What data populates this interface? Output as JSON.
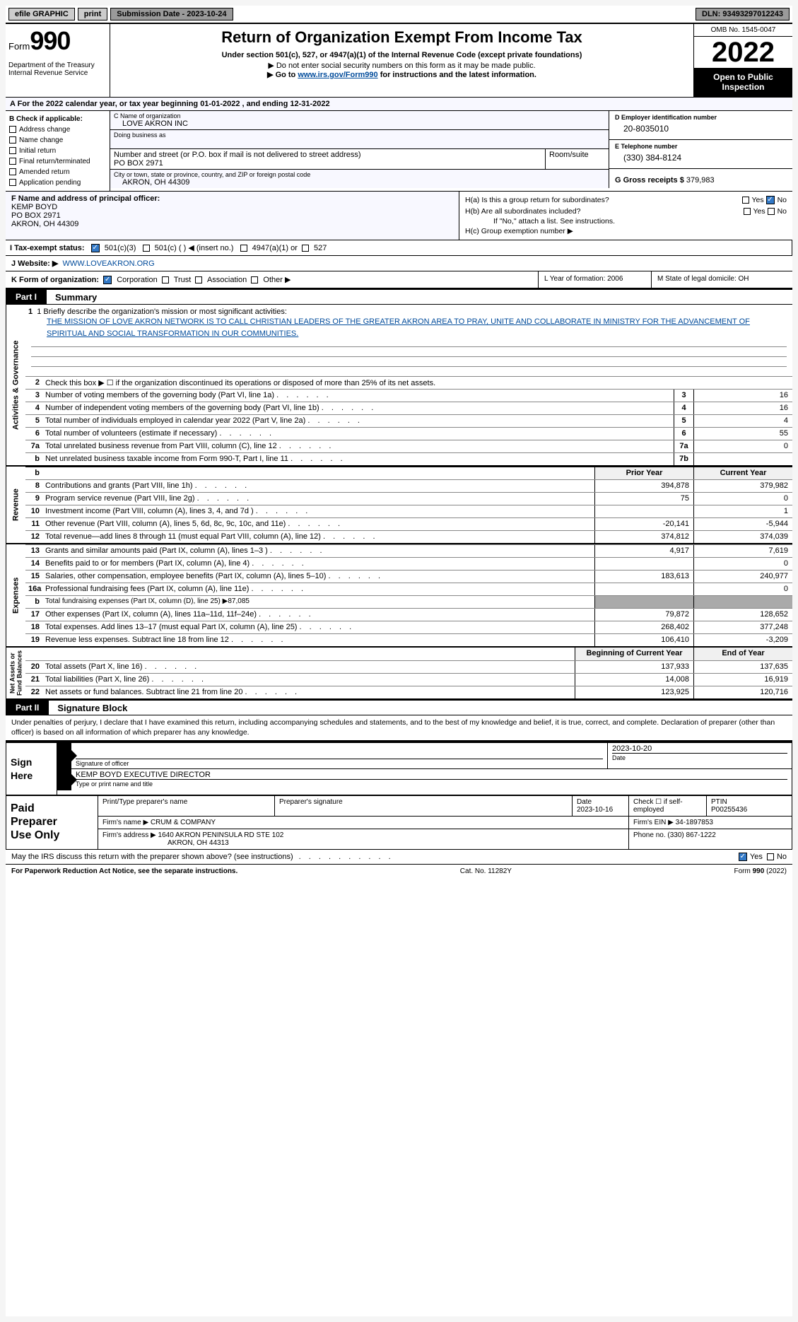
{
  "topbar": {
    "efile": "efile GRAPHIC",
    "print": "print",
    "submission_date": "Submission Date - 2023-10-24",
    "dln": "DLN: 93493297012243"
  },
  "header": {
    "form_prefix": "Form",
    "form_number": "990",
    "dept": "Department of the Treasury\nInternal Revenue Service",
    "title": "Return of Organization Exempt From Income Tax",
    "subtitle": "Under section 501(c), 527, or 4947(a)(1) of the Internal Revenue Code (except private foundations)",
    "note1": "▶ Do not enter social security numbers on this form as it may be made public.",
    "note2_prefix": "▶ Go to ",
    "note2_link": "www.irs.gov/Form990",
    "note2_suffix": " for instructions and the latest information.",
    "omb": "OMB No. 1545-0047",
    "year": "2022",
    "open_public": "Open to Public\nInspection"
  },
  "line_a": "A For the 2022 calendar year, or tax year beginning 01-01-2022    , and ending 12-31-2022",
  "box_b": {
    "label": "B Check if applicable:",
    "items": [
      "Address change",
      "Name change",
      "Initial return",
      "Final return/terminated",
      "Amended return",
      "Application pending"
    ]
  },
  "box_c": {
    "name_label": "C Name of organization",
    "name": "LOVE AKRON INC",
    "dba_label": "Doing business as",
    "dba": "",
    "street_label": "Number and street (or P.O. box if mail is not delivered to street address)",
    "room_label": "Room/suite",
    "street": "PO BOX 2971",
    "city_label": "City or town, state or province, country, and ZIP or foreign postal code",
    "city": "AKRON, OH   44309"
  },
  "box_d": {
    "label": "D Employer identification number",
    "value": "20-8035010"
  },
  "box_e": {
    "label": "E Telephone number",
    "value": "(330) 384-8124"
  },
  "box_g": {
    "label": "G Gross receipts $",
    "value": "379,983"
  },
  "box_f": {
    "label": "F  Name and address of principal officer:",
    "name": "KEMP BOYD",
    "street": "PO BOX 2971",
    "city": "AKRON, OH   44309"
  },
  "box_h": {
    "ha": "H(a)   Is this a group return for subordinates?",
    "hb": "H(b)   Are all subordinates included?",
    "hb_note": "If \"No,\" attach a list. See instructions.",
    "hc": "H(c)   Group exemption number ▶"
  },
  "line_i": {
    "label": "I    Tax-exempt status:",
    "opts": [
      "501(c)(3)",
      "501(c) (  ) ◀ (insert no.)",
      "4947(a)(1) or",
      "527"
    ]
  },
  "line_j": {
    "label": "J   Website: ▶",
    "value": "WWW.LOVEAKRON.ORG"
  },
  "line_k": {
    "label": "K Form of organization:",
    "opts": [
      "Corporation",
      "Trust",
      "Association",
      "Other ▶"
    ],
    "l": "L Year of formation: 2006",
    "m": "M State of legal domicile: OH"
  },
  "part1": {
    "label": "Part I",
    "title": "Summary"
  },
  "mission": {
    "label": "1   Briefly describe the organization's mission or most significant activities:",
    "text": "THE MISSION OF LOVE AKRON NETWORK IS TO CALL CHRISTIAN LEADERS OF THE GREATER AKRON AREA TO PRAY, UNITE AND COLLABORATE IN MINISTRY FOR THE ADVANCEMENT OF SPIRITUAL AND SOCIAL TRANSFORMATION IN OUR COMMUNITIES."
  },
  "activities": {
    "vlabel": "Activities & Governance",
    "rows": [
      {
        "num": "2",
        "desc": "Check this box ▶ ☐  if the organization discontinued its operations or disposed of more than 25% of its net assets."
      },
      {
        "num": "3",
        "desc": "Number of voting members of the governing body (Part VI, line 1a)",
        "box": "3",
        "val": "16"
      },
      {
        "num": "4",
        "desc": "Number of independent voting members of the governing body (Part VI, line 1b)",
        "box": "4",
        "val": "16"
      },
      {
        "num": "5",
        "desc": "Total number of individuals employed in calendar year 2022 (Part V, line 2a)",
        "box": "5",
        "val": "4"
      },
      {
        "num": "6",
        "desc": "Total number of volunteers (estimate if necessary)",
        "box": "6",
        "val": "55"
      },
      {
        "num": "7a",
        "desc": "Total unrelated business revenue from Part VIII, column (C), line 12",
        "box": "7a",
        "val": "0"
      },
      {
        "num": "b",
        "sub": true,
        "desc": "Net unrelated business taxable income from Form 990-T, Part I, line 11",
        "box": "7b",
        "val": ""
      }
    ]
  },
  "revenue": {
    "vlabel": "Revenue",
    "header": {
      "prior": "Prior Year",
      "current": "Current Year"
    },
    "rows": [
      {
        "num": "8",
        "desc": "Contributions and grants (Part VIII, line 1h)",
        "prior": "394,878",
        "current": "379,982"
      },
      {
        "num": "9",
        "desc": "Program service revenue (Part VIII, line 2g)",
        "prior": "75",
        "current": "0"
      },
      {
        "num": "10",
        "desc": "Investment income (Part VIII, column (A), lines 3, 4, and 7d )",
        "prior": "",
        "current": "1"
      },
      {
        "num": "11",
        "desc": "Other revenue (Part VIII, column (A), lines 5, 6d, 8c, 9c, 10c, and 11e)",
        "prior": "-20,141",
        "current": "-5,944"
      },
      {
        "num": "12",
        "desc": "Total revenue—add lines 8 through 11 (must equal Part VIII, column (A), line 12)",
        "prior": "374,812",
        "current": "374,039"
      }
    ]
  },
  "expenses": {
    "vlabel": "Expenses",
    "rows": [
      {
        "num": "13",
        "desc": "Grants and similar amounts paid (Part IX, column (A), lines 1–3 )",
        "prior": "4,917",
        "current": "7,619"
      },
      {
        "num": "14",
        "desc": "Benefits paid to or for members (Part IX, column (A), line 4)",
        "prior": "",
        "current": "0"
      },
      {
        "num": "15",
        "desc": "Salaries, other compensation, employee benefits (Part IX, column (A), lines 5–10)",
        "prior": "183,613",
        "current": "240,977"
      },
      {
        "num": "16a",
        "desc": "Professional fundraising fees (Part IX, column (A), line 11e)",
        "prior": "",
        "current": "0"
      },
      {
        "num": "b",
        "sub": true,
        "desc": "Total fundraising expenses (Part IX, column (D), line 25) ▶87,085",
        "grey": true
      },
      {
        "num": "17",
        "desc": "Other expenses (Part IX, column (A), lines 11a–11d, 11f–24e)",
        "prior": "79,872",
        "current": "128,652"
      },
      {
        "num": "18",
        "desc": "Total expenses. Add lines 13–17 (must equal Part IX, column (A), line 25)",
        "prior": "268,402",
        "current": "377,248"
      },
      {
        "num": "19",
        "desc": "Revenue less expenses. Subtract line 18 from line 12",
        "prior": "106,410",
        "current": "-3,209"
      }
    ]
  },
  "netassets": {
    "vlabel": "Net Assets or\nFund Balances",
    "header": {
      "prior": "Beginning of Current Year",
      "current": "End of Year"
    },
    "rows": [
      {
        "num": "20",
        "desc": "Total assets (Part X, line 16)",
        "prior": "137,933",
        "current": "137,635"
      },
      {
        "num": "21",
        "desc": "Total liabilities (Part X, line 26)",
        "prior": "14,008",
        "current": "16,919"
      },
      {
        "num": "22",
        "desc": "Net assets or fund balances. Subtract line 21 from line 20",
        "prior": "123,925",
        "current": "120,716"
      }
    ]
  },
  "part2": {
    "label": "Part II",
    "title": "Signature Block"
  },
  "sig_text": "Under penalties of perjury, I declare that I have examined this return, including accompanying schedules and statements, and to the best of my knowledge and belief, it is true, correct, and complete. Declaration of preparer (other than officer) is based on all information of which preparer has any knowledge.",
  "sign": {
    "label": "Sign\nHere",
    "sig_officer": "Signature of officer",
    "date": "2023-10-20",
    "date_label": "Date",
    "name": "KEMP BOYD  EXECUTIVE DIRECTOR",
    "name_label": "Type or print name and title"
  },
  "paid": {
    "label": "Paid\nPreparer\nUse Only",
    "h1": "Print/Type preparer's name",
    "h2": "Preparer's signature",
    "h3": "Date",
    "date": "2023-10-16",
    "h4": "Check ☐ if self-employed",
    "h5": "PTIN",
    "ptin": "P00255436",
    "firm_name_label": "Firm's name     ▶",
    "firm_name": "CRUM & COMPANY",
    "firm_ein_label": "Firm's EIN ▶",
    "firm_ein": "34-1897853",
    "firm_addr_label": "Firm's address ▶",
    "firm_addr1": "1640 AKRON PENINSULA RD STE 102",
    "firm_addr2": "AKRON, OH   44313",
    "phone_label": "Phone no.",
    "phone": "(330) 867-1222"
  },
  "may_irs": "May the IRS discuss this return with the preparer shown above? (see instructions)",
  "footer": {
    "left": "For Paperwork Reduction Act Notice, see the separate instructions.",
    "mid": "Cat. No. 11282Y",
    "right": "Form 990 (2022)"
  },
  "colors": {
    "link": "#004b9b",
    "lightblue_bg": "#f8f8ff",
    "grey_btn": "#9a9a9a",
    "checked": "#3279c7"
  }
}
